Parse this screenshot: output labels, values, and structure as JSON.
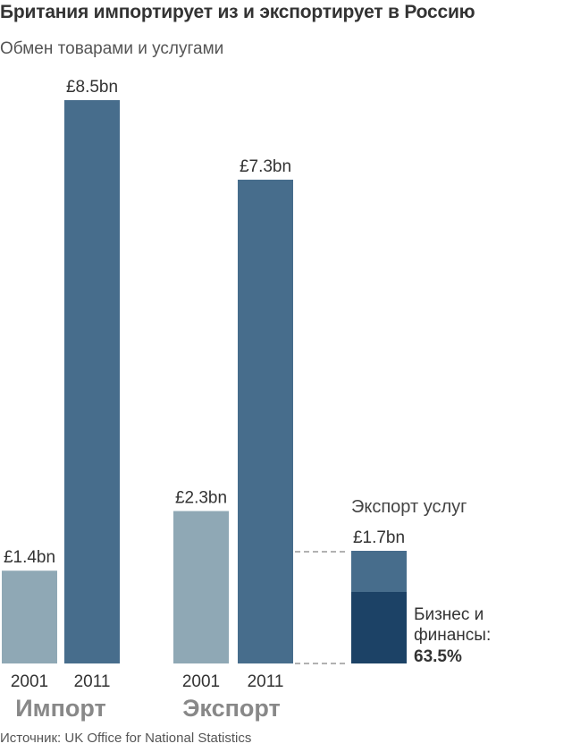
{
  "title": "Британия импортирует из и экспортирует в Россию",
  "subtitle": "Обмен товарами и услугами",
  "source": "Источник: UK Office for National Statistics",
  "colors": {
    "bar_2001": "#8fa8b5",
    "bar_2011": "#476d8c",
    "services_total": "#476d8c",
    "services_business": "#1c4266",
    "group_label": "#888888",
    "text": "#333333",
    "dashed": "#999999"
  },
  "chart_data": {
    "type": "bar",
    "unit": "£bn",
    "groups": [
      {
        "name": "Импорт",
        "bars": [
          {
            "year": "2001",
            "value": 1.4,
            "label": "£1.4bn"
          },
          {
            "year": "2011",
            "value": 8.5,
            "label": "£8.5bn"
          }
        ]
      },
      {
        "name": "Экспорт",
        "bars": [
          {
            "year": "2001",
            "value": 2.3,
            "label": "£2.3bn"
          },
          {
            "year": "2011",
            "value": 7.3,
            "label": "£7.3bn"
          }
        ]
      }
    ],
    "services": {
      "title": "Экспорт услуг",
      "value": 1.7,
      "label": "£1.7bn",
      "business_share": 63.5,
      "business_label": [
        "Бизнес и",
        "финансы:"
      ],
      "business_pct_label": "63.5%"
    }
  }
}
